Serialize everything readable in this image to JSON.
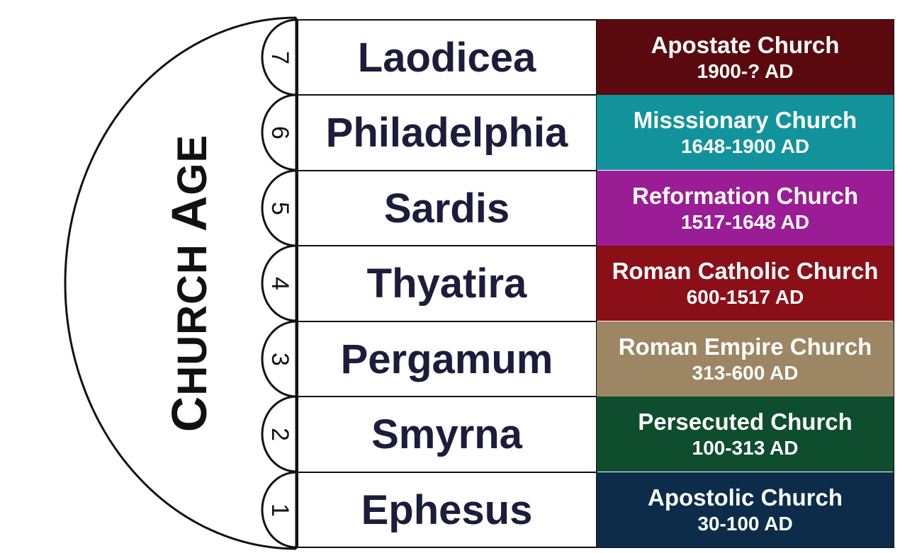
{
  "title": "CHURCH AGE",
  "title_parts": [
    {
      "text": "C",
      "big": true
    },
    {
      "text": "HURCH ",
      "big": false
    },
    {
      "text": "A",
      "big": true
    },
    {
      "text": "GE",
      "big": false
    }
  ],
  "ages": [
    {
      "number": "7",
      "church": "Laodicea",
      "era": "Apostate Church",
      "dates": "1900-? AD",
      "color": "#5a0a0e"
    },
    {
      "number": "6",
      "church": "Philadelphia",
      "era": "Misssionary Church",
      "dates": "1648-1900 AD",
      "color": "#12939b"
    },
    {
      "number": "5",
      "church": "Sardis",
      "era": "Reformation Church",
      "dates": "1517-1648 AD",
      "color": "#9a1d96"
    },
    {
      "number": "4",
      "church": "Thyatira",
      "era": "Roman Catholic Church",
      "dates": "600-1517 AD",
      "color": "#8a0f17"
    },
    {
      "number": "3",
      "church": "Pergamum",
      "era": "Roman Empire Church",
      "dates": "313-600 AD",
      "color": "#9c8664"
    },
    {
      "number": "2",
      "church": "Smyrna",
      "era": "Persecuted Church",
      "dates": "100-313 AD",
      "color": "#0e4d2d"
    },
    {
      "number": "1",
      "church": "Ephesus",
      "era": "Apostolic Church",
      "dates": "30-100 AD",
      "color": "#0c2c4a"
    }
  ]
}
